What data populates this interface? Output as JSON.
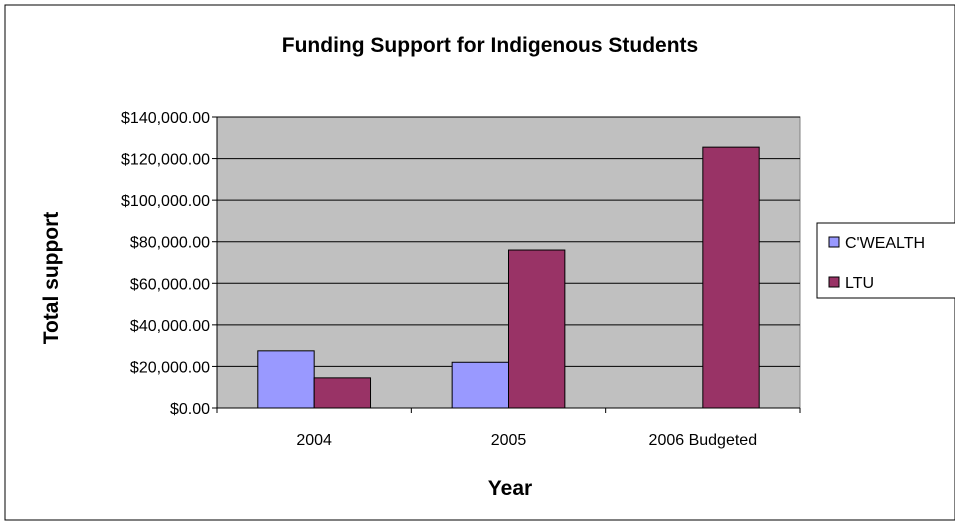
{
  "chart_data": {
    "type": "bar",
    "title": "Funding Support for Indigenous Students",
    "xlabel": "Year",
    "ylabel": "Total support",
    "categories": [
      "2004",
      "2005",
      "2006 Budgeted"
    ],
    "series": [
      {
        "name": "C'WEALTH",
        "values": [
          27500,
          22000,
          0
        ],
        "color": "#9999ff"
      },
      {
        "name": "LTU",
        "values": [
          14500,
          76000,
          125500
        ],
        "color": "#993366"
      }
    ],
    "ylim": [
      0,
      140000
    ],
    "yticks": [
      0,
      20000,
      40000,
      60000,
      80000,
      100000,
      120000,
      140000
    ],
    "ytick_labels": [
      "$0.00",
      "$20,000.00",
      "$40,000.00",
      "$60,000.00",
      "$80,000.00",
      "$100,000.00",
      "$120,000.00",
      "$140,000.00"
    ],
    "grid": true,
    "plot_background": "#c0c0c0",
    "legend_position": "right"
  }
}
